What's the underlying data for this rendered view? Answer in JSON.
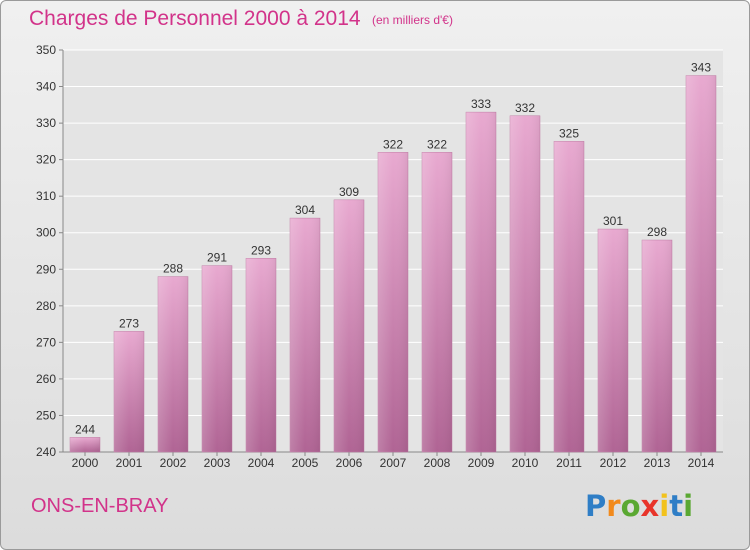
{
  "header": {
    "title": "Charges de Personnel 2000 à 2014",
    "subtitle": "(en milliers d'€)"
  },
  "footer": {
    "town": "ONS-EN-BRAY",
    "logo_text": "Proxiti"
  },
  "colors": {
    "title": "#d2338a",
    "bar_top": "#e8a9d0",
    "bar_bottom": "#b06494"
  },
  "chart_data": {
    "type": "bar",
    "categories": [
      "2000",
      "2001",
      "2002",
      "2003",
      "2004",
      "2005",
      "2006",
      "2007",
      "2008",
      "2009",
      "2010",
      "2011",
      "2012",
      "2013",
      "2014"
    ],
    "values": [
      244,
      273,
      288,
      291,
      293,
      304,
      309,
      322,
      322,
      333,
      332,
      325,
      301,
      298,
      343
    ],
    "ylim": [
      240,
      350
    ],
    "yticks": [
      240,
      250,
      260,
      270,
      280,
      290,
      300,
      310,
      320,
      330,
      340,
      350
    ],
    "grid": true,
    "data_labels": true
  }
}
